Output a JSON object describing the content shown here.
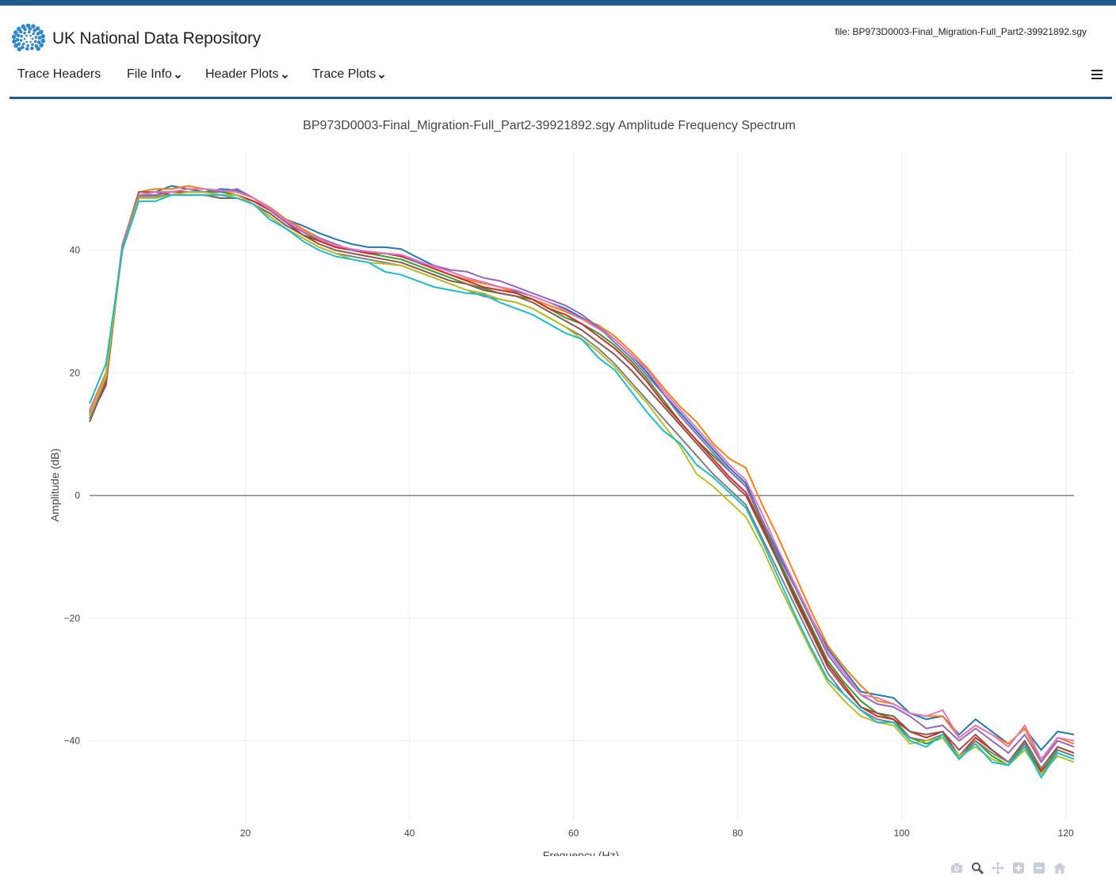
{
  "header": {
    "logo_text": "UK National Data Repository",
    "file_label": "file: BP973D0003-Final_Migration-Full_Part2-39921892.sgy"
  },
  "nav": {
    "items": [
      {
        "label": "Trace Headers",
        "dropdown": false
      },
      {
        "label": "File Info",
        "dropdown": true
      },
      {
        "label": "Header Plots",
        "dropdown": true
      },
      {
        "label": "Trace Plots",
        "dropdown": true
      }
    ],
    "menu_icon": "hamburger-icon"
  },
  "modebar": [
    "camera-icon",
    "zoom-icon",
    "pan-icon",
    "zoom-in-icon",
    "zoom-out-icon",
    "home-icon"
  ],
  "colors": {
    "brand": "#1f5b8c",
    "series": [
      "#1f77b4",
      "#ff7f0e",
      "#2ca02c",
      "#d62728",
      "#9467bd",
      "#8c564b",
      "#e377c2",
      "#7f7f7f",
      "#bcbd22",
      "#17becf"
    ]
  },
  "chart_data": {
    "type": "line",
    "title": "BP973D0003-Final_Migration-Full_Part2-39921892.sgy Amplitude Frequency Spectrum",
    "xlabel": "Frequency (Hz)",
    "ylabel": "Amplitude (dB)",
    "xlim": [
      1,
      121
    ],
    "ylim": [
      -53,
      56
    ],
    "xticks": [
      20,
      40,
      60,
      80,
      100,
      120
    ],
    "yticks": [
      -40,
      -20,
      0,
      20,
      40
    ],
    "grid": true,
    "legend": "none",
    "x": [
      1,
      3,
      5,
      7,
      9,
      11,
      13,
      15,
      17,
      19,
      21,
      23,
      25,
      27,
      29,
      31,
      33,
      35,
      37,
      39,
      41,
      43,
      45,
      47,
      49,
      51,
      53,
      55,
      57,
      59,
      61,
      63,
      65,
      67,
      69,
      71,
      73,
      75,
      77,
      79,
      81,
      83,
      85,
      87,
      89,
      91,
      93,
      95,
      97,
      99,
      101,
      103,
      105,
      107,
      109,
      111,
      113,
      115,
      117,
      119,
      121
    ],
    "series": [
      {
        "values": [
          13.5,
          19.5,
          41.0,
          49.0,
          49.5,
          50.5,
          50.0,
          49.5,
          50.0,
          49.8,
          48.5,
          46.5,
          45.0,
          44.0,
          42.8,
          41.8,
          41.0,
          40.5,
          40.5,
          40.2,
          38.8,
          37.5,
          36.5,
          35.5,
          34.8,
          34.0,
          33.3,
          32.5,
          31.5,
          30.5,
          29.0,
          27.5,
          25.5,
          23.0,
          20.0,
          16.5,
          13.5,
          10.5,
          7.5,
          4.5,
          2.0,
          -4.0,
          -9.5,
          -14.5,
          -20.0,
          -25.0,
          -28.5,
          -32.0,
          -32.5,
          -33.0,
          -35.5,
          -36.5,
          -36.0,
          -39.0,
          -36.5,
          -38.5,
          -40.5,
          -38.0,
          -41.5,
          -38.5,
          -39.0
        ]
      },
      {
        "values": [
          14.0,
          20.0,
          41.0,
          49.5,
          50.0,
          50.0,
          50.5,
          50.0,
          49.5,
          49.5,
          48.5,
          47.0,
          45.0,
          43.5,
          42.0,
          41.0,
          40.0,
          39.5,
          39.5,
          39.0,
          38.0,
          37.0,
          36.0,
          35.2,
          34.6,
          34.0,
          33.0,
          32.0,
          31.0,
          30.0,
          28.8,
          27.8,
          26.0,
          23.5,
          20.8,
          17.5,
          14.5,
          12.0,
          8.5,
          6.0,
          4.5,
          -1.5,
          -7.0,
          -13.0,
          -19.0,
          -24.5,
          -28.0,
          -31.0,
          -33.5,
          -34.0,
          -35.5,
          -36.0,
          -36.0,
          -39.5,
          -37.5,
          -39.0,
          -40.5,
          -38.0,
          -43.5,
          -39.5,
          -40.5
        ]
      },
      {
        "values": [
          13.0,
          18.5,
          40.5,
          48.5,
          48.5,
          49.0,
          49.5,
          49.5,
          49.5,
          49.0,
          48.0,
          46.5,
          44.5,
          43.0,
          41.5,
          40.5,
          40.0,
          39.5,
          39.0,
          38.5,
          37.5,
          36.5,
          35.5,
          34.5,
          33.8,
          33.0,
          32.5,
          32.0,
          30.5,
          29.0,
          28.0,
          26.5,
          24.5,
          22.0,
          19.0,
          15.5,
          12.0,
          9.0,
          6.5,
          4.0,
          1.5,
          -4.5,
          -10.5,
          -16.0,
          -21.5,
          -27.0,
          -30.5,
          -33.5,
          -35.5,
          -36.5,
          -39.5,
          -40.5,
          -39.5,
          -43.0,
          -40.0,
          -42.5,
          -44.0,
          -40.5,
          -45.5,
          -41.5,
          -42.5
        ]
      },
      {
        "values": [
          12.5,
          18.0,
          40.5,
          49.0,
          49.5,
          49.5,
          49.5,
          49.5,
          49.0,
          49.0,
          48.0,
          46.5,
          44.5,
          42.5,
          41.5,
          40.5,
          40.0,
          39.5,
          39.5,
          39.0,
          38.0,
          37.0,
          36.0,
          35.0,
          34.0,
          33.5,
          33.0,
          32.0,
          30.5,
          29.5,
          28.0,
          26.0,
          24.0,
          21.5,
          18.5,
          15.0,
          12.0,
          9.0,
          6.0,
          3.0,
          0.5,
          -5.0,
          -11.0,
          -16.5,
          -22.0,
          -27.5,
          -31.0,
          -34.5,
          -36.0,
          -36.5,
          -38.5,
          -39.5,
          -38.5,
          -42.5,
          -39.5,
          -41.5,
          -43.5,
          -40.0,
          -45.0,
          -41.0,
          -42.0
        ]
      },
      {
        "values": [
          13.2,
          19.0,
          40.5,
          49.0,
          49.0,
          49.5,
          50.0,
          50.0,
          49.5,
          50.0,
          48.5,
          46.5,
          44.5,
          43.0,
          42.0,
          41.0,
          40.0,
          39.8,
          39.5,
          39.2,
          38.0,
          37.5,
          36.8,
          36.5,
          35.5,
          35.0,
          34.0,
          33.0,
          32.0,
          31.0,
          29.5,
          27.5,
          25.0,
          22.5,
          19.5,
          16.5,
          13.0,
          10.0,
          7.0,
          4.0,
          1.5,
          -4.0,
          -10.0,
          -15.0,
          -20.5,
          -26.0,
          -29.5,
          -32.5,
          -34.0,
          -34.5,
          -36.0,
          -38.0,
          -37.5,
          -40.0,
          -38.0,
          -40.0,
          -42.0,
          -39.0,
          -43.5,
          -40.0,
          -41.0
        ]
      },
      {
        "values": [
          12.0,
          18.5,
          40.5,
          49.5,
          49.5,
          49.0,
          49.0,
          49.0,
          48.5,
          48.5,
          47.5,
          46.0,
          44.0,
          42.5,
          41.0,
          40.0,
          39.5,
          39.0,
          38.5,
          38.0,
          37.0,
          36.0,
          35.0,
          34.5,
          33.5,
          33.0,
          32.5,
          31.5,
          30.0,
          28.5,
          27.0,
          25.0,
          23.0,
          20.5,
          17.5,
          14.5,
          11.5,
          8.5,
          5.5,
          2.5,
          0.0,
          -5.5,
          -11.0,
          -17.0,
          -22.5,
          -28.0,
          -31.5,
          -34.5,
          -35.5,
          -36.0,
          -38.5,
          -39.0,
          -38.5,
          -41.5,
          -39.0,
          -41.5,
          -43.5,
          -40.0,
          -44.5,
          -41.0,
          -42.0
        ]
      },
      {
        "values": [
          13.8,
          19.5,
          41.0,
          49.0,
          49.5,
          49.5,
          50.0,
          50.0,
          49.8,
          49.5,
          48.5,
          46.8,
          44.8,
          43.2,
          41.8,
          40.8,
          40.2,
          39.8,
          39.5,
          39.3,
          38.3,
          37.3,
          36.5,
          35.5,
          34.8,
          34.0,
          33.5,
          32.5,
          31.5,
          30.2,
          28.8,
          27.2,
          25.5,
          23.0,
          20.5,
          17.0,
          14.0,
          11.0,
          8.0,
          5.0,
          2.5,
          -3.0,
          -9.0,
          -14.5,
          -20.0,
          -25.5,
          -29.0,
          -32.5,
          -33.0,
          -34.0,
          -35.5,
          -36.0,
          -35.0,
          -39.5,
          -37.5,
          -39.0,
          -41.0,
          -37.5,
          -43.0,
          -39.5,
          -40.0
        ]
      },
      {
        "values": [
          12.5,
          19.0,
          40.5,
          48.8,
          48.8,
          49.0,
          49.5,
          49.5,
          49.0,
          49.0,
          47.5,
          45.5,
          43.5,
          42.0,
          40.5,
          39.5,
          39.0,
          38.5,
          38.0,
          37.5,
          36.5,
          35.5,
          34.5,
          33.5,
          32.5,
          32.0,
          31.5,
          30.5,
          29.0,
          27.5,
          26.0,
          24.0,
          21.5,
          18.5,
          15.5,
          12.5,
          9.5,
          6.5,
          3.5,
          1.0,
          -1.5,
          -7.0,
          -12.5,
          -18.0,
          -23.5,
          -29.0,
          -32.5,
          -35.0,
          -36.5,
          -37.0,
          -39.5,
          -40.0,
          -39.0,
          -42.5,
          -40.0,
          -42.0,
          -43.5,
          -40.5,
          -44.5,
          -41.5,
          -42.5
        ]
      },
      {
        "values": [
          13.0,
          19.5,
          40.0,
          48.5,
          48.5,
          49.0,
          49.5,
          49.5,
          49.0,
          49.0,
          47.5,
          45.5,
          43.5,
          42.0,
          40.5,
          39.5,
          38.5,
          38.0,
          37.8,
          37.5,
          36.5,
          35.5,
          34.5,
          33.5,
          33.0,
          32.0,
          31.5,
          30.5,
          29.0,
          27.5,
          25.5,
          23.5,
          21.0,
          18.0,
          15.0,
          11.5,
          8.0,
          3.5,
          1.5,
          -1.0,
          -3.5,
          -8.5,
          -14.5,
          -20.0,
          -25.5,
          -30.5,
          -33.5,
          -36.0,
          -37.0,
          -37.5,
          -40.5,
          -40.0,
          -39.5,
          -42.5,
          -41.0,
          -43.0,
          -44.0,
          -41.5,
          -45.5,
          -42.5,
          -43.5
        ]
      },
      {
        "values": [
          15.0,
          21.5,
          40.0,
          48.0,
          48.0,
          49.0,
          49.0,
          49.0,
          49.0,
          48.5,
          47.5,
          45.0,
          43.5,
          41.5,
          40.0,
          39.0,
          38.5,
          38.0,
          36.5,
          36.0,
          35.0,
          34.0,
          33.5,
          33.0,
          32.8,
          31.5,
          30.5,
          29.5,
          28.0,
          26.5,
          25.5,
          22.5,
          20.5,
          17.0,
          13.5,
          10.5,
          8.5,
          5.0,
          3.0,
          0.5,
          -2.0,
          -7.5,
          -13.5,
          -19.5,
          -25.0,
          -30.0,
          -32.5,
          -35.0,
          -37.0,
          -37.0,
          -40.0,
          -41.0,
          -39.0,
          -43.0,
          -40.5,
          -43.5,
          -44.0,
          -41.0,
          -46.0,
          -42.0,
          -43.0
        ]
      }
    ]
  }
}
